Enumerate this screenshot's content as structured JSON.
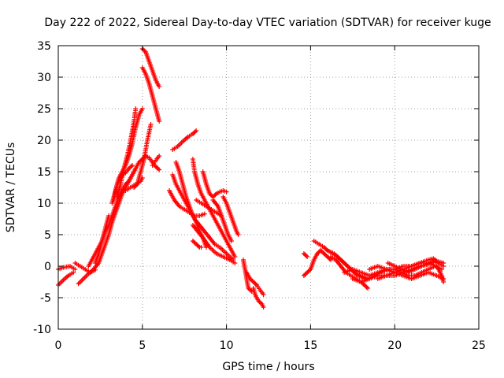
{
  "chart_data": {
    "type": "scatter",
    "title": "Day 222 of 2022, Sidereal Day-to-day VTEC variation (SDTVAR) for receiver kuge",
    "xlabel": "GPS time / hours",
    "ylabel": "SDTVAR / TECUs",
    "xlim": [
      0,
      25
    ],
    "ylim": [
      -10,
      35
    ],
    "xticks": [
      0,
      5,
      10,
      15,
      20,
      25
    ],
    "yticks": [
      -10,
      -5,
      0,
      5,
      10,
      15,
      20,
      25,
      30,
      35
    ],
    "grid": true,
    "marker": "+",
    "color": "#ff0000",
    "tracks": [
      [
        [
          0.0,
          -3.0
        ],
        [
          0.3,
          -2.2
        ],
        [
          0.6,
          -1.5
        ],
        [
          0.9,
          -1.0
        ]
      ],
      [
        [
          0.0,
          -0.5
        ],
        [
          0.3,
          -0.2
        ],
        [
          0.7,
          0.0
        ],
        [
          1.0,
          -0.5
        ]
      ],
      [
        [
          1.0,
          0.5
        ],
        [
          1.3,
          0.0
        ],
        [
          1.6,
          -0.5
        ],
        [
          1.9,
          -1.0
        ],
        [
          2.2,
          -0.6
        ]
      ],
      [
        [
          1.2,
          -2.8
        ],
        [
          1.5,
          -2.0
        ],
        [
          1.8,
          -1.2
        ],
        [
          2.1,
          -0.5
        ],
        [
          2.4,
          0.5
        ],
        [
          2.6,
          2.0
        ],
        [
          2.8,
          3.5
        ],
        [
          3.0,
          5.0
        ],
        [
          3.2,
          7.0
        ],
        [
          3.4,
          8.5
        ],
        [
          3.6,
          10.0
        ],
        [
          3.8,
          11.5
        ],
        [
          4.0,
          12.5
        ],
        [
          4.2,
          13.5
        ],
        [
          4.4,
          14.5
        ],
        [
          4.6,
          15.5
        ],
        [
          4.8,
          16.5
        ],
        [
          5.0,
          17.0
        ],
        [
          5.2,
          17.5
        ],
        [
          5.4,
          17.2
        ],
        [
          5.6,
          16.5
        ],
        [
          5.8,
          15.8
        ],
        [
          6.0,
          15.3
        ]
      ],
      [
        [
          1.8,
          0.0
        ],
        [
          2.0,
          1.0
        ],
        [
          2.2,
          2.0
        ],
        [
          2.4,
          3.0
        ],
        [
          2.6,
          4.0
        ],
        [
          2.8,
          5.5
        ],
        [
          3.0,
          6.5
        ],
        [
          3.2,
          8.0
        ],
        [
          3.4,
          9.5
        ],
        [
          3.6,
          11.0
        ],
        [
          3.8,
          12.2
        ],
        [
          4.0,
          13.0
        ],
        [
          4.2,
          13.5
        ],
        [
          4.4,
          14.5
        ],
        [
          4.6,
          15.5
        ]
      ],
      [
        [
          2.2,
          0.5
        ],
        [
          2.4,
          2.0
        ],
        [
          2.6,
          4.0
        ],
        [
          2.8,
          6.0
        ],
        [
          3.0,
          8.0
        ]
      ],
      [
        [
          3.2,
          10.0
        ],
        [
          3.4,
          12.0
        ],
        [
          3.6,
          14.0
        ],
        [
          3.8,
          15.0
        ],
        [
          4.0,
          16.0
        ],
        [
          4.2,
          17.5
        ],
        [
          4.4,
          19.5
        ],
        [
          4.6,
          22.0
        ],
        [
          4.8,
          24.0
        ],
        [
          5.0,
          25.0
        ]
      ],
      [
        [
          3.5,
          11.0
        ],
        [
          3.7,
          13.0
        ],
        [
          3.9,
          15.5
        ],
        [
          4.1,
          17.5
        ],
        [
          4.3,
          20.0
        ],
        [
          4.5,
          23.0
        ],
        [
          4.6,
          25.0
        ]
      ],
      [
        [
          3.3,
          10.5
        ],
        [
          3.5,
          13.0
        ],
        [
          3.8,
          14.5
        ],
        [
          4.0,
          14.8
        ],
        [
          4.2,
          15.5
        ],
        [
          4.4,
          16.0
        ]
      ],
      [
        [
          4.5,
          12.5
        ],
        [
          4.7,
          13.0
        ],
        [
          4.9,
          15.0
        ],
        [
          5.1,
          17.0
        ],
        [
          5.3,
          20.0
        ],
        [
          5.5,
          22.5
        ]
      ],
      [
        [
          4.0,
          12.0
        ],
        [
          4.3,
          12.5
        ],
        [
          4.6,
          13.0
        ],
        [
          4.9,
          13.5
        ],
        [
          5.0,
          14.0
        ]
      ],
      [
        [
          5.0,
          31.5
        ],
        [
          5.2,
          30.5
        ],
        [
          5.4,
          29.0
        ],
        [
          5.6,
          27.0
        ],
        [
          5.8,
          25.0
        ],
        [
          6.0,
          23.0
        ]
      ],
      [
        [
          5.0,
          34.5
        ],
        [
          5.2,
          34.0
        ],
        [
          5.4,
          32.5
        ],
        [
          5.6,
          31.0
        ],
        [
          5.8,
          29.5
        ],
        [
          6.0,
          28.5
        ]
      ],
      [
        [
          5.6,
          16.0
        ],
        [
          5.8,
          16.8
        ],
        [
          6.0,
          17.5
        ]
      ],
      [
        [
          6.8,
          18.5
        ],
        [
          7.1,
          19.0
        ],
        [
          7.4,
          19.8
        ],
        [
          7.7,
          20.5
        ],
        [
          8.0,
          21.0
        ],
        [
          8.2,
          21.5
        ]
      ],
      [
        [
          6.8,
          14.5
        ],
        [
          7.0,
          13.0
        ],
        [
          7.2,
          12.0
        ],
        [
          7.5,
          10.5
        ],
        [
          7.8,
          9.0
        ],
        [
          8.1,
          7.5
        ],
        [
          8.4,
          6.5
        ],
        [
          8.7,
          5.5
        ],
        [
          9.0,
          4.5
        ],
        [
          9.3,
          3.5
        ],
        [
          9.6,
          3.0
        ],
        [
          10.0,
          2.0
        ],
        [
          10.4,
          1.0
        ]
      ],
      [
        [
          7.0,
          16.5
        ],
        [
          7.2,
          15.0
        ],
        [
          7.4,
          13.0
        ],
        [
          7.6,
          11.0
        ],
        [
          7.8,
          9.5
        ],
        [
          8.0,
          8.0
        ],
        [
          8.2,
          7.0
        ],
        [
          8.4,
          5.5
        ],
        [
          8.6,
          4.5
        ],
        [
          8.8,
          3.0
        ]
      ],
      [
        [
          6.6,
          12.0
        ],
        [
          6.9,
          10.5
        ],
        [
          7.2,
          9.5
        ],
        [
          7.5,
          9.0
        ],
        [
          7.8,
          8.5
        ],
        [
          8.1,
          8.0
        ],
        [
          8.4,
          8.0
        ],
        [
          8.7,
          8.3
        ]
      ],
      [
        [
          8.0,
          17.0
        ],
        [
          8.1,
          15.0
        ],
        [
          8.3,
          13.0
        ],
        [
          8.5,
          11.5
        ],
        [
          8.7,
          10.5
        ],
        [
          9.0,
          9.0
        ],
        [
          9.3,
          7.5
        ],
        [
          9.6,
          6.0
        ],
        [
          9.9,
          4.5
        ],
        [
          10.2,
          3.0
        ],
        [
          10.5,
          1.5
        ]
      ],
      [
        [
          8.6,
          15.0
        ],
        [
          8.8,
          13.0
        ],
        [
          9.0,
          11.5
        ],
        [
          9.2,
          11.0
        ],
        [
          9.4,
          11.5
        ],
        [
          9.6,
          11.8
        ],
        [
          9.8,
          12.0
        ],
        [
          10.0,
          11.8
        ]
      ],
      [
        [
          8.0,
          6.5
        ],
        [
          8.3,
          5.5
        ],
        [
          8.6,
          4.5
        ],
        [
          9.0,
          3.0
        ],
        [
          9.4,
          2.0
        ],
        [
          9.8,
          1.5
        ],
        [
          10.2,
          1.0
        ],
        [
          10.5,
          0.5
        ]
      ],
      [
        [
          8.2,
          10.5
        ],
        [
          8.5,
          10.0
        ],
        [
          8.8,
          9.5
        ],
        [
          9.1,
          9.0
        ],
        [
          9.4,
          8.5
        ],
        [
          9.7,
          8.0
        ]
      ],
      [
        [
          9.8,
          11.0
        ],
        [
          10.0,
          10.0
        ],
        [
          10.2,
          8.5
        ],
        [
          10.4,
          7.0
        ],
        [
          10.6,
          5.5
        ],
        [
          10.7,
          5.0
        ]
      ],
      [
        [
          9.2,
          10.5
        ],
        [
          9.5,
          9.5
        ],
        [
          9.7,
          8.0
        ],
        [
          9.9,
          6.5
        ],
        [
          10.1,
          5.0
        ],
        [
          10.3,
          4.0
        ]
      ],
      [
        [
          8.0,
          4.0
        ],
        [
          8.2,
          3.5
        ],
        [
          8.4,
          3.0
        ],
        [
          8.5,
          3.0
        ]
      ],
      [
        [
          11.0,
          1.0
        ],
        [
          11.1,
          -0.5
        ],
        [
          11.2,
          -2.0
        ],
        [
          11.3,
          -3.5
        ],
        [
          11.5,
          -4.0
        ]
      ],
      [
        [
          11.2,
          -1.0
        ],
        [
          11.4,
          -2.0
        ],
        [
          11.6,
          -2.5
        ],
        [
          11.8,
          -3.0
        ]
      ],
      [
        [
          11.6,
          -3.5
        ],
        [
          11.7,
          -4.5
        ],
        [
          11.9,
          -5.5
        ],
        [
          12.1,
          -6.0
        ],
        [
          12.2,
          -6.5
        ]
      ],
      [
        [
          11.8,
          -3.0
        ],
        [
          12.0,
          -3.8
        ],
        [
          12.2,
          -4.5
        ]
      ],
      [
        [
          14.6,
          2.0
        ],
        [
          14.8,
          1.5
        ]
      ],
      [
        [
          14.6,
          -1.5
        ],
        [
          14.8,
          -1.0
        ],
        [
          15.0,
          -0.5
        ],
        [
          15.2,
          1.0
        ],
        [
          15.4,
          2.0
        ],
        [
          15.6,
          2.5
        ],
        [
          15.8,
          2.0
        ],
        [
          16.0,
          1.5
        ],
        [
          16.2,
          1.0
        ]
      ],
      [
        [
          15.2,
          4.0
        ],
        [
          15.5,
          3.5
        ],
        [
          15.8,
          3.0
        ],
        [
          16.0,
          2.5
        ],
        [
          16.3,
          2.0
        ],
        [
          16.6,
          1.5
        ],
        [
          17.0,
          0.5
        ],
        [
          17.4,
          -0.5
        ],
        [
          17.8,
          -1.5
        ],
        [
          18.2,
          -2.0
        ]
      ],
      [
        [
          16.2,
          1.5
        ],
        [
          16.5,
          1.0
        ],
        [
          16.8,
          0.0
        ],
        [
          17.1,
          -1.0
        ],
        [
          17.4,
          -1.5
        ],
        [
          17.7,
          -2.0
        ],
        [
          18.0,
          -2.5
        ],
        [
          18.2,
          -3.0
        ],
        [
          18.4,
          -3.5
        ]
      ],
      [
        [
          16.0,
          2.5
        ],
        [
          16.4,
          2.0
        ],
        [
          16.8,
          1.0
        ],
        [
          17.2,
          0.0
        ],
        [
          17.6,
          -1.0
        ],
        [
          18.0,
          -1.5
        ],
        [
          18.4,
          -2.0
        ],
        [
          18.8,
          -1.5
        ],
        [
          19.2,
          -1.0
        ],
        [
          19.6,
          -0.5
        ],
        [
          20.0,
          -0.5
        ],
        [
          20.4,
          -1.0
        ],
        [
          20.8,
          -1.5
        ],
        [
          21.2,
          -1.5
        ],
        [
          21.6,
          -1.0
        ],
        [
          22.0,
          -0.5
        ],
        [
          22.4,
          0.0
        ],
        [
          22.8,
          -0.5
        ]
      ],
      [
        [
          17.0,
          -1.0
        ],
        [
          17.5,
          -0.5
        ],
        [
          18.0,
          -1.0
        ],
        [
          18.5,
          -1.5
        ],
        [
          19.0,
          -1.0
        ],
        [
          19.5,
          -0.5
        ],
        [
          20.0,
          -0.5
        ],
        [
          20.5,
          0.0
        ],
        [
          21.0,
          0.0
        ],
        [
          21.5,
          0.5
        ],
        [
          22.0,
          1.0
        ],
        [
          22.3,
          1.2
        ],
        [
          22.6,
          0.5
        ],
        [
          22.9,
          0.0
        ]
      ],
      [
        [
          17.5,
          -2.0
        ],
        [
          18.0,
          -2.5
        ],
        [
          18.5,
          -2.0
        ],
        [
          19.0,
          -1.5
        ],
        [
          19.5,
          -1.5
        ],
        [
          20.0,
          -1.0
        ],
        [
          20.5,
          -0.5
        ],
        [
          21.0,
          0.0
        ],
        [
          21.5,
          0.5
        ],
        [
          22.0,
          0.5
        ],
        [
          22.5,
          0.0
        ],
        [
          22.8,
          -1.5
        ],
        [
          22.9,
          -2.5
        ]
      ],
      [
        [
          18.5,
          -0.5
        ],
        [
          19.0,
          0.0
        ],
        [
          19.5,
          -0.5
        ],
        [
          20.0,
          -1.0
        ],
        [
          20.5,
          -1.5
        ],
        [
          21.0,
          -2.0
        ],
        [
          21.5,
          -1.5
        ],
        [
          22.0,
          -1.0
        ],
        [
          22.5,
          -1.5
        ],
        [
          22.9,
          -2.0
        ]
      ],
      [
        [
          19.0,
          -2.0
        ],
        [
          19.5,
          -1.5
        ],
        [
          20.0,
          -1.5
        ],
        [
          20.5,
          -1.0
        ],
        [
          21.0,
          -0.5
        ],
        [
          21.5,
          0.0
        ],
        [
          22.0,
          0.3
        ],
        [
          22.5,
          0.8
        ],
        [
          22.9,
          0.5
        ]
      ],
      [
        [
          19.6,
          0.5
        ],
        [
          20.0,
          0.0
        ],
        [
          20.4,
          -0.5
        ],
        [
          20.8,
          -1.0
        ],
        [
          21.2,
          -0.5
        ],
        [
          21.6,
          0.0
        ],
        [
          22.0,
          0.5
        ],
        [
          22.4,
          1.0
        ]
      ]
    ]
  }
}
